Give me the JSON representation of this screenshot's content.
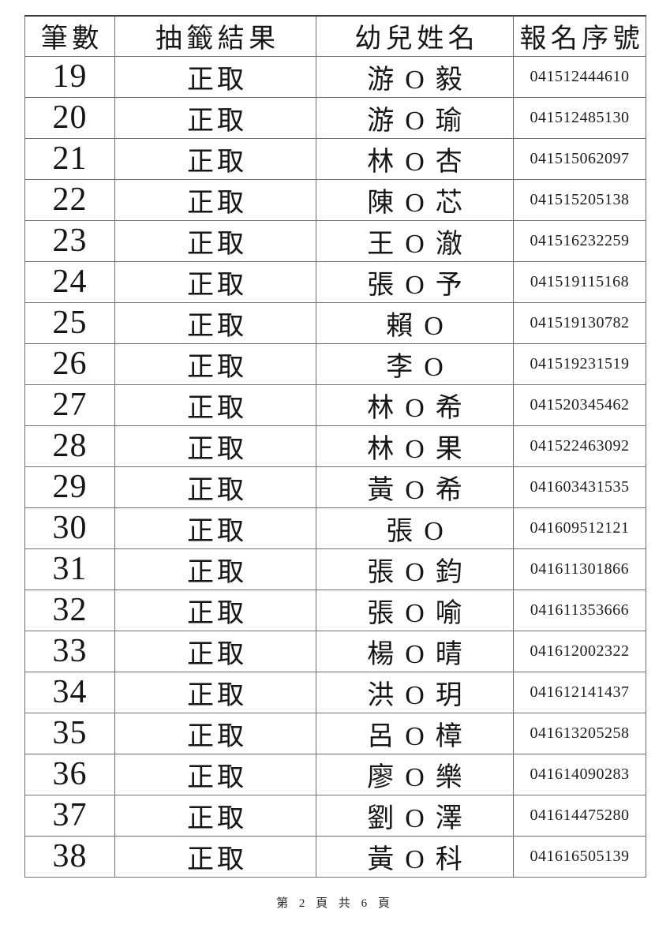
{
  "table": {
    "headers": [
      "筆數",
      "抽籤結果",
      "幼兒姓名",
      "報名序號"
    ],
    "rows": [
      {
        "no": "19",
        "result": "正取",
        "name": "游 O 毅",
        "serial": "041512444610"
      },
      {
        "no": "20",
        "result": "正取",
        "name": "游 O 瑜",
        "serial": "041512485130"
      },
      {
        "no": "21",
        "result": "正取",
        "name": "林 O 杏",
        "serial": "041515062097"
      },
      {
        "no": "22",
        "result": "正取",
        "name": "陳 O 芯",
        "serial": "041515205138"
      },
      {
        "no": "23",
        "result": "正取",
        "name": "王 O 澈",
        "serial": "041516232259"
      },
      {
        "no": "24",
        "result": "正取",
        "name": "張 O 予",
        "serial": "041519115168"
      },
      {
        "no": "25",
        "result": "正取",
        "name": "賴 O",
        "serial": "041519130782"
      },
      {
        "no": "26",
        "result": "正取",
        "name": "李 O",
        "serial": "041519231519"
      },
      {
        "no": "27",
        "result": "正取",
        "name": "林 O 希",
        "serial": "041520345462"
      },
      {
        "no": "28",
        "result": "正取",
        "name": "林 O 果",
        "serial": "041522463092"
      },
      {
        "no": "29",
        "result": "正取",
        "name": "黃 O 希",
        "serial": "041603431535"
      },
      {
        "no": "30",
        "result": "正取",
        "name": "張 O",
        "serial": "041609512121"
      },
      {
        "no": "31",
        "result": "正取",
        "name": "張 O 鈞",
        "serial": "041611301866"
      },
      {
        "no": "32",
        "result": "正取",
        "name": "張 O 喻",
        "serial": "041611353666"
      },
      {
        "no": "33",
        "result": "正取",
        "name": "楊 O 晴",
        "serial": "041612002322"
      },
      {
        "no": "34",
        "result": "正取",
        "name": "洪 O 玥",
        "serial": "041612141437"
      },
      {
        "no": "35",
        "result": "正取",
        "name": "呂 O 樟",
        "serial": "041613205258"
      },
      {
        "no": "36",
        "result": "正取",
        "name": "廖 O 樂",
        "serial": "041614090283"
      },
      {
        "no": "37",
        "result": "正取",
        "name": "劉 O 澤",
        "serial": "041614475280"
      },
      {
        "no": "38",
        "result": "正取",
        "name": "黃 O 科",
        "serial": "041616505139"
      }
    ]
  },
  "footer": {
    "page_indicator": "第 2 頁 共 6 頁"
  }
}
